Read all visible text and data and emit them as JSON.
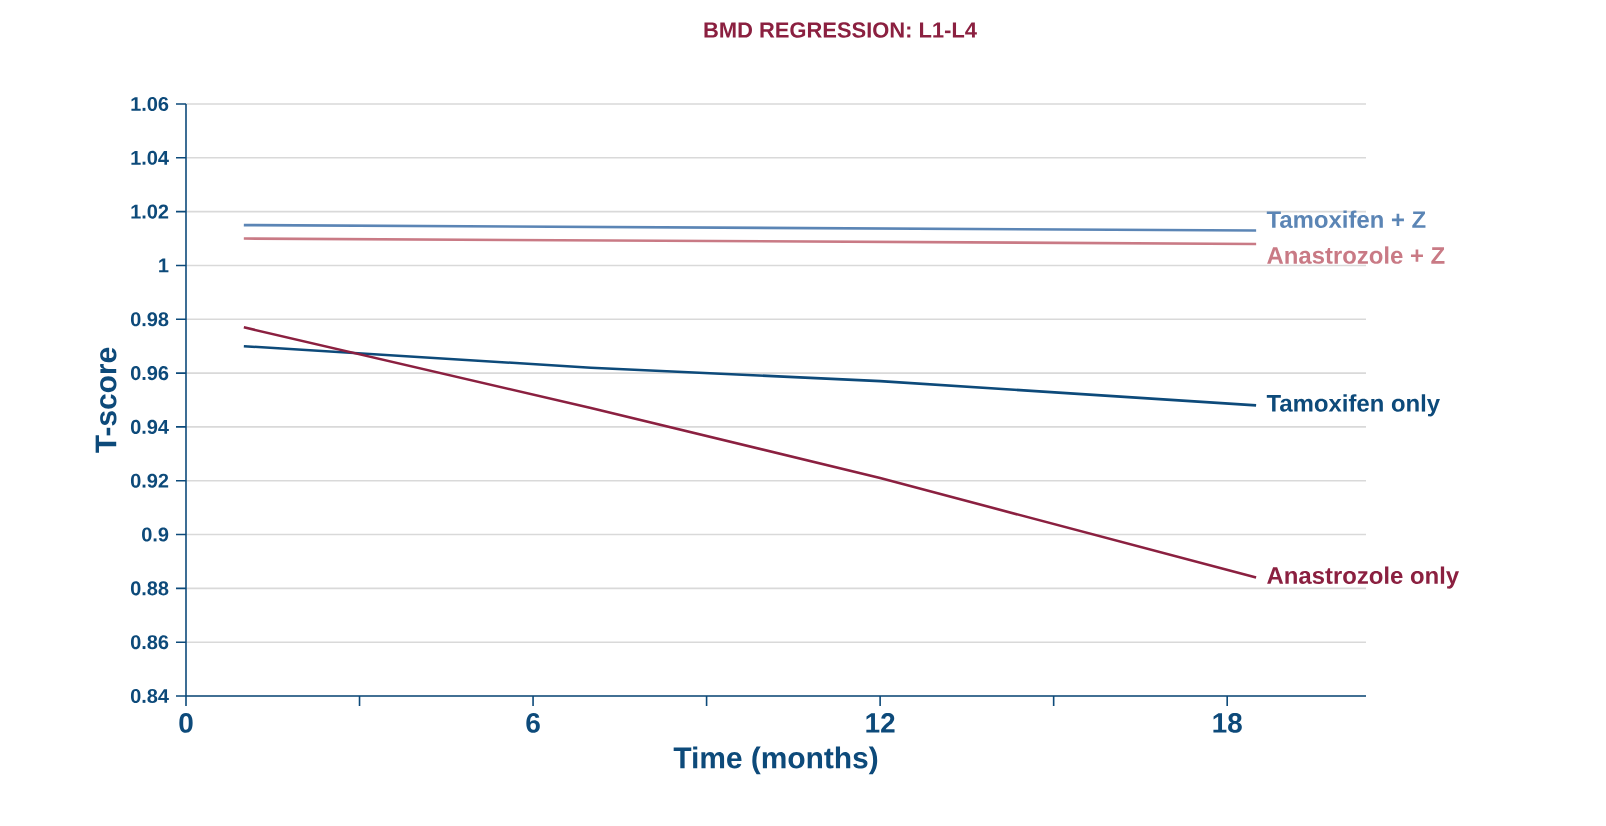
{
  "chart_data": {
    "type": "line",
    "title": "BMD REGRESSION: L1-L4",
    "xlabel": "Time (months)",
    "ylabel": "T-score",
    "xlim": [
      0,
      20.4
    ],
    "xticks": [
      0,
      {
        "value": 3,
        "label": null
      },
      6,
      {
        "value": 9,
        "label": null
      },
      12,
      {
        "value": 15,
        "label": null
      },
      18
    ],
    "ylim": [
      0.84,
      1.06
    ],
    "yticks": [
      0.84,
      0.86,
      0.88,
      0.9,
      0.92,
      0.94,
      0.96,
      0.98,
      1,
      1.02,
      1.04,
      1.06
    ],
    "grid": "y",
    "legend": false,
    "marker": "none",
    "line_style": "solid",
    "series": [
      {
        "name": "Tamoxifen + Z",
        "color": "#5b85b5",
        "x": [
          1,
          18.5
        ],
        "values": [
          1.015,
          1.013
        ]
      },
      {
        "name": "Anastrozole + Z",
        "color": "#c97a85",
        "x": [
          1,
          18.5
        ],
        "values": [
          1.01,
          1.008
        ]
      },
      {
        "name": "Tamoxifen only",
        "color": "#0d4a7a",
        "x": [
          1,
          7,
          12,
          18.5
        ],
        "values": [
          0.97,
          0.962,
          0.957,
          0.948
        ]
      },
      {
        "name": "Anastrozole only",
        "color": "#8b2040",
        "x": [
          1,
          7,
          12,
          18.5
        ],
        "values": [
          0.977,
          0.947,
          0.921,
          0.884
        ]
      }
    ]
  }
}
